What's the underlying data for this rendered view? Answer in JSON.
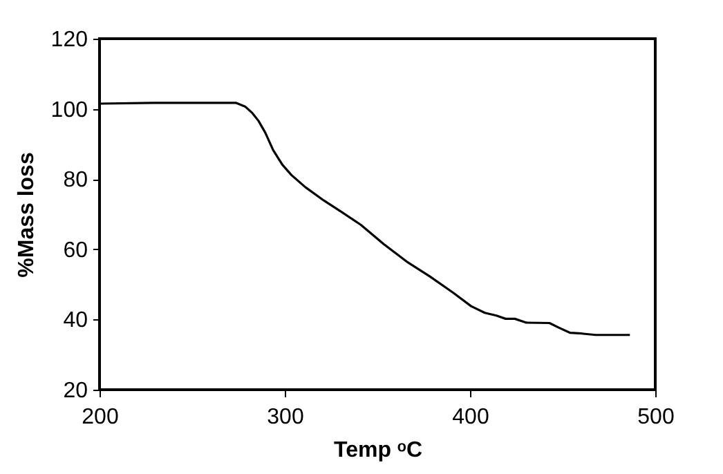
{
  "chart_data": {
    "type": "line",
    "xlabel": "Temp ᵒC",
    "ylabel": "%Mass loss",
    "x": [
      200,
      229,
      273.8,
      278.8,
      282.5,
      285.8,
      289.5,
      293.7,
      298.7,
      303.7,
      311.1,
      321.1,
      331,
      341,
      353.4,
      365.8,
      378.2,
      390.7,
      400.6,
      408,
      414.3,
      419.2,
      424.2,
      430.4,
      442.9,
      447.9,
      454.1,
      460.3,
      467.8,
      486.3
    ],
    "series": [
      {
        "color": "#000000",
        "values": [
          101.5,
          101.7,
          101.7,
          100.6,
          98.8,
          96.6,
          93.2,
          88.3,
          84.1,
          81.1,
          77.7,
          73.9,
          70.5,
          67,
          61.5,
          56.5,
          52.3,
          47.7,
          43.8,
          41.9,
          41.1,
          40.2,
          40.2,
          39.1,
          39,
          37.7,
          36.2,
          36,
          35.6,
          35.6
        ]
      }
    ],
    "xlim": [
      200,
      500
    ],
    "xticks": [
      200,
      300,
      400,
      500
    ],
    "ylim": [
      20,
      120
    ],
    "yticks": [
      20,
      40,
      60,
      80,
      100,
      120
    ],
    "grid": false,
    "marker": "none",
    "line_style": "solid"
  }
}
